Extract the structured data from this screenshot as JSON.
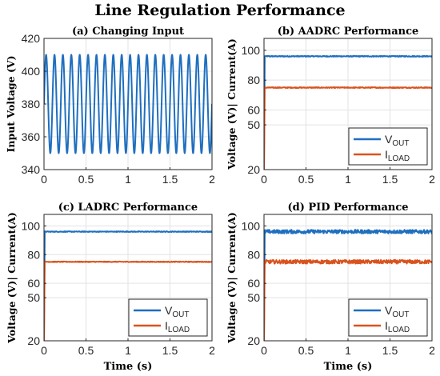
{
  "figure_title": "Line Regulation Performance",
  "chart_data": [
    {
      "id": "a",
      "type": "line",
      "title": "(a) Changing Input",
      "xlabel": "",
      "ylabel": "Input Voltage (V)",
      "xlim": [
        0,
        2
      ],
      "ylim": [
        340,
        420
      ],
      "xticks": [
        0,
        0.5,
        1,
        1.5,
        2
      ],
      "xtick_labels": [
        "0",
        "0.5",
        "1",
        "1.5",
        "2"
      ],
      "yticks": [
        340,
        360,
        380,
        400,
        420
      ],
      "ytick_labels": [
        "340",
        "360",
        "380",
        "400",
        "420"
      ],
      "grid": true,
      "series": [
        {
          "color": "#1f6fbf",
          "kind": "sine",
          "offset": 380,
          "amplitude": 30,
          "frequency_hz": 10,
          "phase": 0
        }
      ]
    },
    {
      "id": "b",
      "type": "line",
      "title": "(b) AADRC Performance",
      "xlabel": "",
      "ylabel": "Voltage (V)| Current(A)",
      "xlim": [
        0,
        2
      ],
      "ylim": [
        20,
        108
      ],
      "xticks": [
        0,
        0.5,
        1,
        1.5,
        2
      ],
      "xtick_labels": [
        "0",
        "0.5",
        "1",
        "1.5",
        "2"
      ],
      "yticks": [
        20,
        50,
        60,
        80,
        100
      ],
      "ytick_labels": [
        "20",
        "50",
        "60",
        "80",
        "100"
      ],
      "grid": true,
      "legend": {
        "placement": "bottom-right",
        "entries": [
          {
            "main": "V",
            "sub": "OUT",
            "color": "#1f6fbf"
          },
          {
            "main": "I",
            "sub": "LOAD",
            "color": "#d9531e"
          }
        ]
      },
      "series": [
        {
          "color": "#1f6fbf",
          "kind": "flat",
          "value": 96,
          "noise": 0.3,
          "start": 20
        },
        {
          "color": "#d9531e",
          "kind": "flat",
          "value": 75,
          "noise": 0.3,
          "start": 20
        }
      ]
    },
    {
      "id": "c",
      "type": "line",
      "title": "(c) LADRC Performance",
      "xlabel": "Time (s)",
      "ylabel": "Voltage (V)| Current(A)",
      "xlim": [
        0,
        2
      ],
      "ylim": [
        20,
        108
      ],
      "xticks": [
        0,
        0.5,
        1,
        1.5,
        2
      ],
      "xtick_labels": [
        "0",
        "0.5",
        "1",
        "1.5",
        "2"
      ],
      "yticks": [
        20,
        50,
        60,
        80,
        100
      ],
      "ytick_labels": [
        "20",
        "50",
        "60",
        "80",
        "100"
      ],
      "grid": true,
      "legend": {
        "placement": "bottom-right",
        "entries": [
          {
            "main": "V",
            "sub": "OUT",
            "color": "#1f6fbf"
          },
          {
            "main": "I",
            "sub": "LOAD",
            "color": "#d9531e"
          }
        ]
      },
      "series": [
        {
          "color": "#1f6fbf",
          "kind": "flat",
          "value": 96,
          "noise": 0.25,
          "start": 20
        },
        {
          "color": "#d9531e",
          "kind": "flat",
          "value": 75,
          "noise": 0.25,
          "start": 20
        }
      ]
    },
    {
      "id": "d",
      "type": "line",
      "title": "(d) PID Performance",
      "xlabel": "Time (s)",
      "ylabel": "Voltage (V)| Current(A)",
      "xlim": [
        0,
        2
      ],
      "ylim": [
        20,
        108
      ],
      "xticks": [
        0,
        0.5,
        1,
        1.5,
        2
      ],
      "xtick_labels": [
        "0",
        "0.5",
        "1",
        "1.5",
        "2"
      ],
      "yticks": [
        20,
        50,
        60,
        80,
        100
      ],
      "ytick_labels": [
        "20",
        "50",
        "60",
        "80",
        "100"
      ],
      "grid": true,
      "legend": {
        "placement": "bottom-right",
        "entries": [
          {
            "main": "V",
            "sub": "OUT",
            "color": "#1f6fbf"
          },
          {
            "main": "I",
            "sub": "LOAD",
            "color": "#d9531e"
          }
        ]
      },
      "series": [
        {
          "color": "#1f6fbf",
          "kind": "flat",
          "value": 96,
          "noise": 1.3,
          "start": 20
        },
        {
          "color": "#d9531e",
          "kind": "flat",
          "value": 75,
          "noise": 1.3,
          "start": 20
        }
      ]
    }
  ]
}
